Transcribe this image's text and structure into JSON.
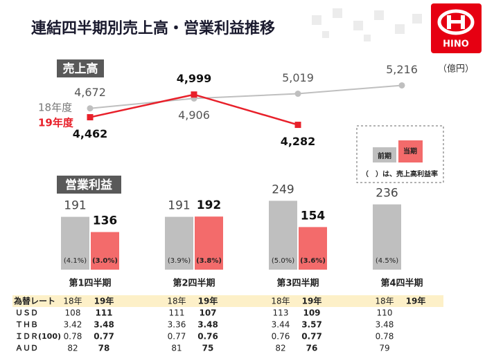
{
  "title": "連結四半期別売上高・営業利益推移",
  "logo": "HINO",
  "chart_data": [
    {
      "type": "line",
      "title": "売上高",
      "unit": "（億円）",
      "ylim": [
        3800,
        5600
      ],
      "series": [
        {
          "name": "18年度",
          "color": "#bfbfbf",
          "values": [
            4672,
            4906,
            5019,
            5216
          ],
          "value_labels": [
            "4,672",
            "4,906",
            "5,019",
            "5,216"
          ]
        },
        {
          "name": "19年度",
          "color": "#e8202a",
          "values": [
            4462,
            4999,
            4282,
            null
          ],
          "value_labels": [
            "4,462",
            "4,999",
            "4,282",
            null
          ]
        }
      ]
    },
    {
      "type": "bar",
      "title": "営業利益",
      "categories": [
        "第1四半期",
        "第2四半期",
        "第3四半期",
        "第4四半期"
      ],
      "ylim": [
        0,
        250
      ],
      "series": [
        {
          "name": "前期",
          "color": "#bfbfbf",
          "values": [
            191,
            191,
            249,
            236
          ],
          "rates": [
            "(4.1%)",
            "(3.9%)",
            "(5.0%)",
            "(4.5%)"
          ]
        },
        {
          "name": "当期",
          "color": "#f36b6b",
          "values": [
            136,
            192,
            154,
            null
          ],
          "rates": [
            "(3.0%)",
            "(3.8%)",
            "(3.6%)",
            null
          ]
        }
      ],
      "legend_note": "（　）は、売上高利益率"
    }
  ],
  "table": {
    "label": "為替レート",
    "header": [
      "18年",
      "19年",
      "18年",
      "19年",
      "18年",
      "19年",
      "18年",
      "19年"
    ],
    "rows": [
      {
        "label": "ＵＳＤ",
        "values": [
          "108",
          "111",
          "111",
          "107",
          "113",
          "109",
          "110",
          null
        ]
      },
      {
        "label": "ＴＨＢ",
        "values": [
          "3.42",
          "3.48",
          "3.36",
          "3.48",
          "3.44",
          "3.57",
          "3.48",
          null
        ]
      },
      {
        "label": "ＩＤＲ(100)",
        "values": [
          "0.78",
          "0.77",
          "0.77",
          "0.76",
          "0.76",
          "0.77",
          "0.78",
          null
        ]
      },
      {
        "label": "ＡＵＤ",
        "values": [
          "82",
          "78",
          "81",
          "75",
          "82",
          "76",
          "79",
          null
        ]
      }
    ]
  }
}
